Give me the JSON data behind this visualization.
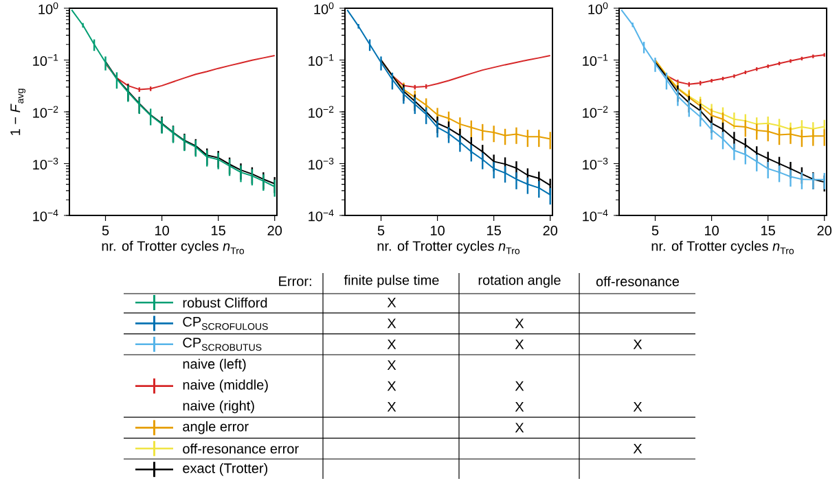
{
  "chart_data": [
    {
      "type": "line",
      "xlabel": "nr. of Trotter cycles *n*$_{Tro}$",
      "ylabel": "1 − *F*$_{avg}$",
      "log": true,
      "x": [
        2,
        3,
        4,
        5,
        6,
        7,
        8,
        9,
        10,
        11,
        12,
        13,
        14,
        15,
        16,
        17,
        18,
        19,
        20
      ],
      "xlim": [
        1.8,
        20.2
      ],
      "ylim": [
        0.0001,
        1
      ],
      "xticks": [
        5,
        10,
        15,
        20
      ],
      "yticks": [
        {
          "value": 0.0001,
          "label": "10$^{−4}$"
        },
        {
          "value": 0.001,
          "label": "10$^{−3}$"
        },
        {
          "value": 0.01,
          "label": "10$^{−2}$"
        },
        {
          "value": 0.1,
          "label": "10$^{−1}$"
        },
        {
          "value": 1,
          "label": "10$^{0}$"
        }
      ],
      "line_style": "solid",
      "series": [
        {
          "color": "#d62728",
          "values": [
            null,
            null,
            null,
            0.085,
            0.045,
            0.032,
            0.027,
            0.028,
            0.032,
            0.038,
            0.045,
            0.053,
            0.06,
            0.069,
            0.078,
            0.088,
            0.099,
            0.11,
            0.122
          ],
          "errors": [
            null,
            null,
            null,
            null,
            null,
            0.0032,
            0.0027,
            0.0028,
            null,
            null,
            null,
            null,
            null,
            null,
            null,
            null,
            null,
            null,
            null
          ]
        },
        {
          "color": "#000000",
          "values": [
            null,
            null,
            null,
            0.093,
            0.044,
            0.025,
            0.0144,
            0.0087,
            0.006,
            0.004,
            0.0028,
            0.0022,
            0.00145,
            0.0013,
            0.00097,
            0.00075,
            0.00063,
            0.0005,
            0.00041
          ],
          "errors": [
            null,
            null,
            null,
            null,
            null,
            0.0088,
            0.005,
            null,
            0.0021,
            0.0014,
            0.00098,
            0.00077,
            0.00051,
            0.00046,
            0.00034,
            0.00026,
            0.00022,
            0.00018,
            0.00014
          ]
        },
        {
          "color": "#009e73",
          "values": [
            0.93,
            0.47,
            0.2,
            0.09,
            0.043,
            0.024,
            0.014,
            0.0085,
            0.0058,
            0.0039,
            0.0027,
            0.0021,
            0.00135,
            0.0012,
            0.0009,
            0.00068,
            0.00058,
            0.00046,
            0.00036
          ],
          "errors": [
            null,
            0.047,
            0.05,
            0.027,
            0.015,
            0.0084,
            0.0049,
            0.003,
            0.002,
            0.0014,
            0.00095,
            0.00074,
            0.00047,
            0.00042,
            0.00032,
            0.00024,
            0.0002,
            0.00016,
            0.00013
          ]
        }
      ]
    },
    {
      "type": "line",
      "xlabel": "nr. of Trotter cycles *n*$_{Tro}$",
      "log": true,
      "x": [
        2,
        3,
        4,
        5,
        6,
        7,
        8,
        9,
        10,
        11,
        12,
        13,
        14,
        15,
        16,
        17,
        18,
        19,
        20
      ],
      "xlim": [
        1.8,
        20.2
      ],
      "ylim": [
        0.0001,
        1
      ],
      "xticks": [
        5,
        10,
        15,
        20
      ],
      "yticks": [
        {
          "value": 0.0001,
          "label": "10$^{−4}$"
        },
        {
          "value": 0.001,
          "label": "10$^{−3}$"
        },
        {
          "value": 0.01,
          "label": "10$^{−2}$"
        },
        {
          "value": 0.1,
          "label": "10$^{−1}$"
        },
        {
          "value": 1,
          "label": "10$^{0}$"
        }
      ],
      "line_style": "solid",
      "series": [
        {
          "color": "#d62728",
          "values": [
            null,
            null,
            null,
            0.1,
            0.05,
            0.032,
            0.03,
            0.031,
            0.035,
            0.04,
            0.047,
            0.055,
            0.064,
            0.072,
            0.081,
            0.09,
            0.1,
            0.11,
            0.122
          ],
          "errors": [
            null,
            null,
            null,
            null,
            null,
            0.0032,
            0.003,
            0.0031,
            null,
            null,
            null,
            null,
            null,
            null,
            null,
            null,
            null,
            null,
            null
          ]
        },
        {
          "color": "#e69f00",
          "values": [
            null,
            null,
            null,
            0.1,
            0.05,
            0.027,
            0.019,
            0.0135,
            0.0088,
            0.0075,
            0.0058,
            0.005,
            0.0043,
            0.004,
            0.0035,
            0.0037,
            0.0033,
            0.0033,
            0.003
          ],
          "errors": [
            null,
            null,
            null,
            null,
            null,
            0.0095,
            0.0067,
            0.0047,
            0.0031,
            0.0026,
            0.002,
            0.0018,
            0.0015,
            0.0014,
            0.0012,
            0.0013,
            0.0012,
            0.0012,
            0.0011
          ]
        },
        {
          "color": "#000000",
          "values": [
            null,
            null,
            null,
            0.1,
            0.05,
            0.025,
            0.016,
            0.01,
            0.006,
            0.0048,
            0.0035,
            0.0024,
            0.0017,
            0.0011,
            0.00098,
            0.00082,
            0.0006,
            0.00052,
            0.00038
          ],
          "errors": [
            null,
            null,
            null,
            null,
            null,
            0.0088,
            0.0056,
            null,
            0.0021,
            0.0017,
            0.0012,
            0.00084,
            0.0006,
            0.00039,
            0.00034,
            0.00029,
            0.00021,
            0.00018,
            0.00013
          ]
        },
        {
          "color": "#0072b2",
          "values": [
            0.93,
            0.45,
            0.2,
            0.09,
            0.042,
            0.022,
            0.014,
            0.009,
            0.005,
            0.0038,
            0.0026,
            0.0017,
            0.0012,
            0.0008,
            0.00066,
            0.0005,
            0.0004,
            0.00034,
            0.00025
          ],
          "errors": [
            null,
            0.045,
            0.05,
            0.027,
            0.015,
            0.0077,
            0.0049,
            0.0032,
            0.0018,
            0.0013,
            0.00091,
            0.0006,
            0.00042,
            0.00028,
            0.00023,
            0.00018,
            0.00014,
            0.00012,
            8.8e-05
          ]
        }
      ]
    },
    {
      "type": "line",
      "xlabel": "nr. of Trotter cycles *n*$_{Tro}$",
      "log": true,
      "x": [
        2,
        3,
        4,
        5,
        6,
        7,
        8,
        9,
        10,
        11,
        12,
        13,
        14,
        15,
        16,
        17,
        18,
        19,
        20
      ],
      "xlim": [
        1.8,
        20.2
      ],
      "ylim": [
        0.0001,
        1
      ],
      "xticks": [
        5,
        10,
        15,
        20
      ],
      "yticks": [
        {
          "value": 0.0001,
          "label": "10$^{−4}$"
        },
        {
          "value": 0.001,
          "label": "10$^{−3}$"
        },
        {
          "value": 0.01,
          "label": "10$^{−2}$"
        },
        {
          "value": 0.1,
          "label": "10$^{−1}$"
        },
        {
          "value": 1,
          "label": "10$^{0}$"
        }
      ],
      "line_style": "solid",
      "series": [
        {
          "color": "#d62728",
          "values": [
            null,
            null,
            null,
            0.1,
            0.05,
            0.038,
            0.034,
            0.036,
            0.04,
            0.044,
            0.049,
            0.058,
            0.067,
            0.076,
            0.086,
            0.096,
            0.107,
            0.118,
            0.126
          ],
          "errors": [
            null,
            null,
            null,
            null,
            null,
            0.0038,
            0.0034,
            0.0036,
            0.0032,
            0.0035,
            0.0039,
            0.0046,
            0.0054,
            0.0061,
            0.0069,
            0.0077,
            0.0086,
            0.0094,
            0.01
          ]
        },
        {
          "color": "#f0e442",
          "values": [
            null,
            null,
            null,
            0.1,
            0.052,
            0.029,
            0.02,
            0.0145,
            0.0105,
            0.009,
            0.0072,
            0.0067,
            0.0058,
            0.006,
            0.0054,
            0.0046,
            0.0051,
            0.0047,
            0.0052
          ],
          "errors": [
            null,
            null,
            null,
            null,
            null,
            null,
            0.007,
            0.0051,
            0.0037,
            0.0032,
            0.0025,
            0.0023,
            0.002,
            0.0021,
            0.0019,
            0.0016,
            0.0018,
            0.0016,
            0.0018
          ]
        },
        {
          "color": "#e69f00",
          "values": [
            null,
            null,
            null,
            0.1,
            0.05,
            0.028,
            0.019,
            0.013,
            0.0085,
            0.0072,
            0.0053,
            0.0051,
            0.0044,
            0.0042,
            0.0036,
            0.0037,
            0.0033,
            0.0034,
            0.0034
          ],
          "errors": [
            null,
            null,
            null,
            null,
            null,
            0.0098,
            0.0067,
            0.0046,
            0.003,
            0.0025,
            null,
            0.0018,
            0.0015,
            0.0015,
            0.0013,
            0.0013,
            0.0012,
            0.0012,
            0.0012
          ]
        },
        {
          "color": "#000000",
          "values": [
            null,
            null,
            null,
            0.09,
            0.048,
            0.024,
            0.015,
            0.0105,
            0.006,
            0.0046,
            0.003,
            0.0023,
            0.0016,
            0.00125,
            0.001,
            0.0008,
            0.00063,
            0.0005,
            0.00044
          ],
          "errors": [
            null,
            null,
            null,
            null,
            null,
            0.0084,
            0.0053,
            0.0037,
            0.0021,
            0.0016,
            0.0011,
            0.0008,
            0.00056,
            0.00044,
            0.00035,
            0.00028,
            0.00022,
            0.00018,
            0.00015
          ]
        },
        {
          "color": "#56b4e9",
          "values": [
            0.93,
            0.48,
            0.18,
            0.085,
            0.042,
            0.02,
            0.0123,
            0.008,
            0.0045,
            0.003,
            0.0018,
            0.0015,
            0.0011,
            0.0008,
            0.00068,
            0.00056,
            0.0005,
            0.00049,
            0.00049
          ],
          "errors": [
            null,
            0.048,
            0.045,
            0.026,
            0.015,
            0.007,
            0.0043,
            0.0028,
            0.0016,
            0.0011,
            0.00063,
            0.00053,
            0.00039,
            0.00028,
            0.00024,
            0.0002,
            0.00018,
            0.00017,
            0.00017
          ]
        }
      ]
    },
    {
      "type": "other",
      "legend_title": "Error:",
      "categories": [
        "finite pulse time",
        "rotation angle",
        "off-resonance"
      ],
      "y_categories": [
        "robust Clifford",
        "\\mathrm{CP}_{\\mathrm{SCROFULOUS}}",
        "\\mathrm{CP}_{\\mathrm{SCROBUTUS}}",
        "naive (left)",
        "naive (middle)",
        "naive (right)",
        "angle error",
        "off-resonance error",
        "exact (Trotter)"
      ],
      "colors": [
        "#009e73",
        "#0072b2",
        "#56b4e9",
        "#d62728",
        "#d62728",
        "#d62728",
        "#e69f00",
        "#f0e442",
        "#000000"
      ],
      "cell_labels": [
        [
          "X",
          null,
          null
        ],
        [
          "X",
          "X",
          null
        ],
        [
          "X",
          "X",
          "X"
        ],
        [
          "X",
          null,
          null
        ],
        [
          "X",
          "X",
          null
        ],
        [
          "X",
          "X",
          "X"
        ],
        [
          null,
          "X",
          null
        ],
        [
          null,
          null,
          "X"
        ],
        [
          null,
          null,
          null
        ]
      ]
    }
  ]
}
